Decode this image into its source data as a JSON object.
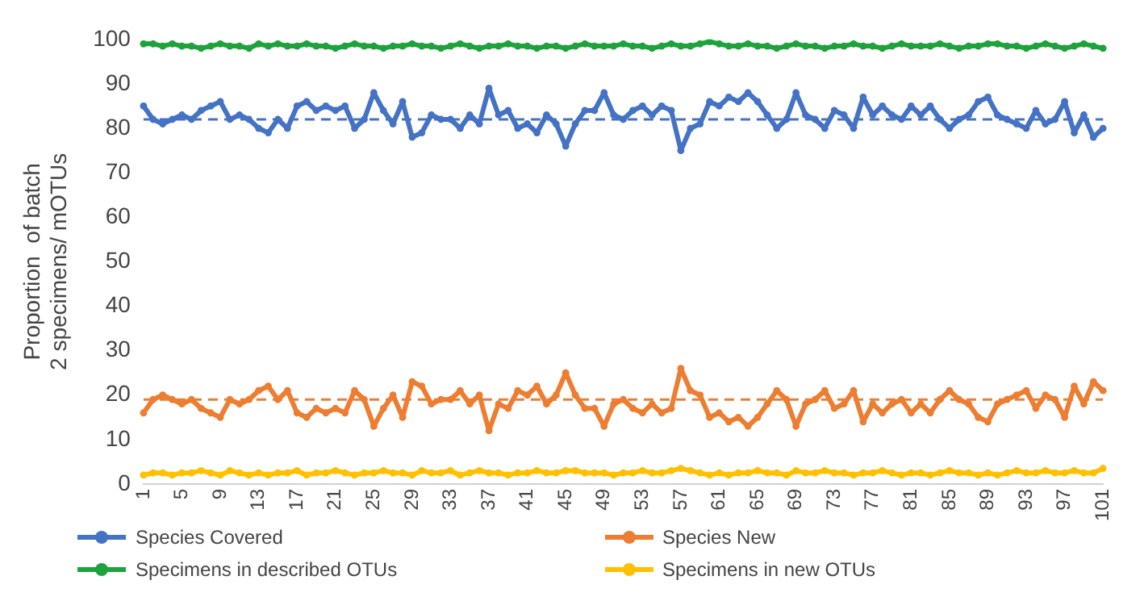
{
  "chart_data": {
    "type": "line",
    "ylabel": "Proportion  of batch 2 specimens/ mOTUs",
    "categories": [
      "1",
      null,
      null,
      null,
      "5",
      null,
      null,
      null,
      "9",
      null,
      null,
      null,
      "13",
      null,
      null,
      null,
      "17",
      null,
      null,
      null,
      "21",
      null,
      null,
      null,
      "25",
      null,
      null,
      null,
      "29",
      null,
      null,
      null,
      "33",
      null,
      null,
      null,
      "37",
      null,
      null,
      null,
      "41",
      null,
      null,
      null,
      "45",
      null,
      null,
      null,
      "49",
      null,
      null,
      null,
      "53",
      null,
      null,
      null,
      "57",
      null,
      null,
      null,
      "61",
      null,
      null,
      null,
      "65",
      null,
      null,
      null,
      "69",
      null,
      null,
      null,
      "73",
      null,
      null,
      null,
      "77",
      null,
      null,
      null,
      "81",
      null,
      null,
      null,
      "85",
      null,
      null,
      null,
      "89",
      null,
      null,
      null,
      "93",
      null,
      null,
      null,
      "97",
      null,
      null,
      null,
      "101"
    ],
    "series": [
      {
        "name": "Species Covered",
        "color": "#4472c4",
        "values": [
          85,
          82,
          81,
          82,
          83,
          82,
          84,
          85,
          86,
          82,
          83,
          82,
          80,
          79,
          82,
          80,
          85,
          86,
          84,
          85,
          84,
          85,
          80,
          82,
          88,
          84,
          81,
          86,
          78,
          79,
          83,
          82,
          82,
          80,
          83,
          81,
          89,
          83,
          84,
          80,
          81,
          79,
          83,
          81,
          76,
          81,
          84,
          84,
          88,
          83,
          82,
          84,
          85,
          83,
          85,
          84,
          75,
          80,
          81,
          86,
          85,
          87,
          86,
          88,
          86,
          83,
          80,
          82,
          88,
          83,
          82,
          80,
          84,
          83,
          80,
          87,
          83,
          85,
          83,
          82,
          85,
          83,
          85,
          82,
          80,
          82,
          83,
          86,
          87,
          83,
          82,
          81,
          80,
          84,
          81,
          82,
          86,
          79,
          83,
          78,
          80
        ]
      },
      {
        "name": "Species New",
        "color": "#ed7d31",
        "values": [
          16,
          19,
          20,
          19,
          18,
          19,
          17,
          16,
          15,
          19,
          18,
          19,
          21,
          22,
          19,
          21,
          16,
          15,
          17,
          16,
          17,
          16,
          21,
          19,
          13,
          17,
          20,
          15,
          23,
          22,
          18,
          19,
          19,
          21,
          18,
          20,
          12,
          18,
          17,
          21,
          20,
          22,
          18,
          20,
          25,
          20,
          17,
          17,
          13,
          18,
          19,
          17,
          16,
          18,
          16,
          17,
          26,
          21,
          20,
          15,
          16,
          14,
          15,
          13,
          15,
          18,
          21,
          19,
          13,
          18,
          19,
          21,
          17,
          18,
          21,
          14,
          18,
          16,
          18,
          19,
          16,
          18,
          16,
          19,
          21,
          19,
          18,
          15,
          14,
          18,
          19,
          20,
          21,
          17,
          20,
          19,
          15,
          22,
          18,
          23,
          21
        ]
      },
      {
        "name": "Specimens in described OTUs",
        "color": "#1ea23c",
        "values": [
          99,
          99,
          98.5,
          99,
          98.5,
          98.5,
          98,
          98.5,
          99,
          98.5,
          98.5,
          98,
          99,
          98.5,
          99,
          98.5,
          98.5,
          99,
          98.5,
          98.5,
          98,
          98.5,
          99,
          98.5,
          98.5,
          98,
          98.5,
          98.5,
          99,
          98.5,
          98.5,
          98,
          98.5,
          99,
          98.5,
          98,
          98.5,
          98.5,
          99,
          98.5,
          98.5,
          98,
          98.5,
          98.5,
          98,
          98.5,
          99,
          98.5,
          98.5,
          98.5,
          99,
          98.5,
          98.5,
          98,
          98.5,
          99,
          98.5,
          98.5,
          99,
          99.5,
          99,
          98.5,
          98.5,
          99,
          98.5,
          98.5,
          98,
          98.5,
          99,
          98.5,
          98.5,
          98,
          98.5,
          98.5,
          99,
          98.5,
          98.5,
          98,
          98.5,
          99,
          98.5,
          98.5,
          98.5,
          99,
          98.5,
          98,
          98.5,
          98.5,
          99,
          99,
          98.5,
          98.5,
          98,
          98.5,
          99,
          98.5,
          98,
          98.5,
          99,
          98.5,
          98
        ]
      },
      {
        "name": "Specimens in new OTUs",
        "color": "#ffc000",
        "values": [
          2,
          2.5,
          2.5,
          2,
          2.5,
          2.5,
          3,
          2.5,
          2,
          3,
          2.5,
          2,
          2.5,
          2,
          2.5,
          2.5,
          3,
          2,
          2.5,
          2.5,
          3,
          2.5,
          2,
          2.5,
          2.5,
          3,
          2.5,
          2.5,
          2,
          3,
          2.5,
          2.5,
          3,
          2,
          2.5,
          3,
          2.5,
          2.5,
          2,
          2.5,
          2.5,
          3,
          2.5,
          2.5,
          3,
          3,
          2.5,
          2.5,
          2.5,
          2,
          2.5,
          2.5,
          3,
          2.5,
          2.5,
          3,
          3.5,
          3,
          2.5,
          2,
          2.5,
          2,
          2.5,
          2.5,
          3,
          2.5,
          2.5,
          2,
          3,
          2.5,
          2.5,
          3,
          2.5,
          2.5,
          2,
          2.5,
          2.5,
          3,
          2.5,
          2,
          2.5,
          2.5,
          2,
          2.5,
          3,
          2.5,
          2.5,
          2,
          2.5,
          2,
          2.5,
          3,
          2.5,
          2.5,
          3,
          2.5,
          2.5,
          3,
          2.5,
          2.5,
          3.5
        ]
      }
    ],
    "ylim": [
      0,
      100
    ],
    "yticks": [
      0,
      10,
      20,
      30,
      40,
      50,
      60,
      70,
      80,
      90,
      100
    ],
    "ref_lines": [
      {
        "axis": "y",
        "value": 82,
        "color": "#4472c4",
        "line_style": "dashed"
      },
      {
        "axis": "y",
        "value": 19,
        "color": "#ed7d31",
        "line_style": "dashed"
      }
    ],
    "grid": false,
    "legend": "bottom",
    "marker": "circle",
    "line_style": "solid"
  }
}
